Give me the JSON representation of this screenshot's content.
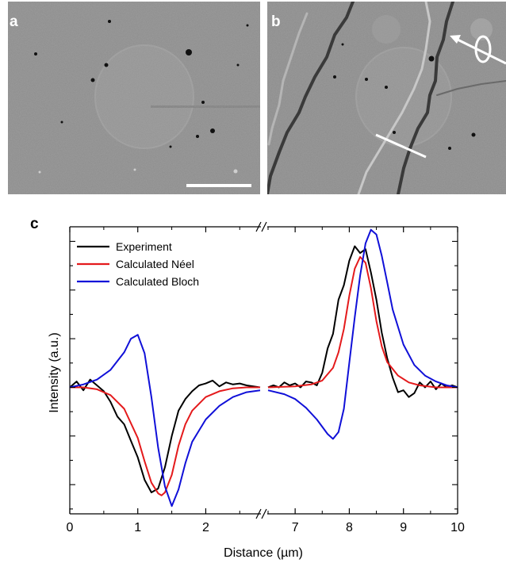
{
  "panels": {
    "a": {
      "label": "a",
      "scale_bar": true
    },
    "b": {
      "label": "b",
      "line_profile": true,
      "icon": "rotation-arrow-icon"
    }
  },
  "colors": {
    "experiment": "#000000",
    "neel": "#e41a1c",
    "bloch": "#1010d8",
    "image_background": "#8a8a8a"
  },
  "chart_data": {
    "panel_label": "c",
    "type": "line",
    "xlabel": "Distance (µm)",
    "ylabel": "Intensity (a.u.)",
    "broken_x_axis": true,
    "x_segments": [
      {
        "range": [
          0,
          2.8
        ],
        "ticks": [
          0,
          1,
          2
        ],
        "tick_labels": [
          "0",
          "1",
          "2"
        ]
      },
      {
        "range": [
          6.5,
          10
        ],
        "ticks": [
          7,
          8,
          9,
          10
        ],
        "tick_labels": [
          "7",
          "8",
          "9",
          "10"
        ]
      }
    ],
    "y_ticks_labeled": false,
    "legend_position": "top-left",
    "series": [
      {
        "name": "Experiment",
        "color": "#000000",
        "x": [
          0,
          0.1,
          0.2,
          0.3,
          0.4,
          0.5,
          0.6,
          0.7,
          0.8,
          0.9,
          1.0,
          1.1,
          1.2,
          1.3,
          1.4,
          1.5,
          1.6,
          1.7,
          1.8,
          1.9,
          2.0,
          2.1,
          2.2,
          2.3,
          2.4,
          2.5,
          2.6,
          2.7,
          2.8,
          6.5,
          6.6,
          6.7,
          6.8,
          6.9,
          7.0,
          7.1,
          7.2,
          7.3,
          7.4,
          7.5,
          7.6,
          7.7,
          7.8,
          7.9,
          8.0,
          8.1,
          8.2,
          8.3,
          8.4,
          8.5,
          8.6,
          8.7,
          8.8,
          8.9,
          9.0,
          9.1,
          9.2,
          9.3,
          9.4,
          9.5,
          9.6,
          9.7,
          9.8,
          9.9,
          10.0
        ],
        "y": [
          0.0,
          0.06,
          -0.03,
          0.08,
          0.02,
          -0.04,
          -0.15,
          -0.3,
          -0.38,
          -0.55,
          -0.72,
          -0.95,
          -1.08,
          -1.04,
          -0.82,
          -0.5,
          -0.24,
          -0.12,
          -0.04,
          0.02,
          0.04,
          0.07,
          0.01,
          0.05,
          0.03,
          0.04,
          0.02,
          0.01,
          0.0,
          0.0,
          0.02,
          0.0,
          0.05,
          0.02,
          0.04,
          0.0,
          0.06,
          0.05,
          0.02,
          0.15,
          0.4,
          0.55,
          0.9,
          1.05,
          1.3,
          1.45,
          1.38,
          1.42,
          1.18,
          0.9,
          0.56,
          0.3,
          0.1,
          -0.05,
          -0.03,
          -0.1,
          -0.06,
          0.05,
          0.0,
          0.06,
          -0.02,
          0.04,
          0.0,
          0.02,
          0.0
        ]
      },
      {
        "name": "Calculated Néel",
        "color": "#e41a1c",
        "x": [
          0,
          0.2,
          0.4,
          0.6,
          0.8,
          1.0,
          1.1,
          1.2,
          1.3,
          1.35,
          1.4,
          1.5,
          1.6,
          1.7,
          1.8,
          2.0,
          2.2,
          2.4,
          2.6,
          2.8,
          6.5,
          7.0,
          7.3,
          7.5,
          7.7,
          7.8,
          7.9,
          8.0,
          8.1,
          8.2,
          8.3,
          8.4,
          8.5,
          8.6,
          8.7,
          8.9,
          9.1,
          9.3,
          9.6,
          10.0
        ],
        "y": [
          0.0,
          0.0,
          -0.02,
          -0.08,
          -0.22,
          -0.52,
          -0.76,
          -0.98,
          -1.09,
          -1.11,
          -1.08,
          -0.9,
          -0.6,
          -0.38,
          -0.24,
          -0.1,
          -0.04,
          -0.01,
          0.0,
          0.0,
          0.0,
          0.01,
          0.03,
          0.07,
          0.2,
          0.36,
          0.6,
          0.94,
          1.22,
          1.34,
          1.28,
          1.02,
          0.68,
          0.42,
          0.26,
          0.12,
          0.05,
          0.02,
          0.0,
          0.0
        ]
      },
      {
        "name": "Calculated Bloch",
        "color": "#1010d8",
        "x": [
          0,
          0.2,
          0.4,
          0.6,
          0.8,
          0.9,
          1.0,
          1.1,
          1.2,
          1.3,
          1.4,
          1.5,
          1.6,
          1.7,
          1.8,
          2.0,
          2.2,
          2.4,
          2.6,
          2.8,
          6.5,
          6.8,
          7.0,
          7.2,
          7.4,
          7.6,
          7.7,
          7.8,
          7.9,
          8.0,
          8.1,
          8.2,
          8.3,
          8.4,
          8.5,
          8.6,
          8.7,
          8.8,
          9.0,
          9.2,
          9.4,
          9.6,
          9.8,
          10.0
        ],
        "y": [
          0.0,
          0.03,
          0.08,
          0.18,
          0.36,
          0.5,
          0.54,
          0.35,
          -0.1,
          -0.62,
          -1.02,
          -1.22,
          -1.05,
          -0.78,
          -0.56,
          -0.33,
          -0.19,
          -0.1,
          -0.05,
          -0.03,
          -0.03,
          -0.07,
          -0.12,
          -0.21,
          -0.33,
          -0.48,
          -0.53,
          -0.46,
          -0.22,
          0.25,
          0.72,
          1.15,
          1.48,
          1.62,
          1.57,
          1.35,
          1.08,
          0.8,
          0.44,
          0.23,
          0.12,
          0.06,
          0.02,
          0.0
        ]
      }
    ]
  }
}
